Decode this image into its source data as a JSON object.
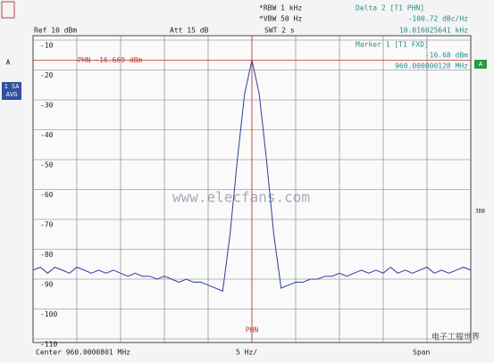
{
  "header": {
    "ref": "Ref  10 dBm",
    "att": "Att  15 dB",
    "rbw": "*RBW 1 kHz",
    "vbw": "*VBW 50 Hz",
    "swt": "SWT 2 s",
    "delta_title": "Delta 2 [T1 PHN]",
    "delta_value": "-100.72 dBc/Hz",
    "delta_freq": "10.016025641 kHz",
    "marker_title": "Marker 1 [T1 FXD]",
    "marker_value": "-16.68 dBm",
    "marker_freq": "960.000000128 MHz"
  },
  "side_labels": {
    "left_top": "A",
    "left_mode": "1 SA",
    "left_avg": "AVG",
    "right_a": "A",
    "right_3db": "3DB"
  },
  "footer": {
    "center": "Center  960.0000801 MHz",
    "per_div": "5 Hz/",
    "span": "Span"
  },
  "watermark": {
    "site": "www.elecfans.com",
    "logo": "电子工程世界"
  },
  "chart_data": {
    "type": "line",
    "color": "#2a3f9a",
    "values": [
      -87,
      -86,
      -88,
      -86,
      -87,
      -88,
      -86,
      -87,
      -88,
      -87,
      -88,
      -87,
      -88,
      -89,
      -88,
      -89,
      -89,
      -90,
      -89,
      -90,
      -91,
      -90,
      -91,
      -91,
      -92,
      -93,
      -94,
      -75,
      -50,
      -28,
      -16.7,
      -28,
      -50,
      -75,
      -93,
      -92,
      -91,
      -91,
      -90,
      -90,
      -89,
      -89,
      -88,
      -89,
      -88,
      -87,
      -88,
      -87,
      -88,
      -86,
      -88,
      -87,
      -88,
      -87,
      -86,
      -88,
      -87,
      -88,
      -87,
      -86,
      -87
    ],
    "ylim": [
      -110,
      -10
    ],
    "yticks": [
      -10,
      -20,
      -30,
      -40,
      -50,
      -60,
      -70,
      -80,
      -90,
      -100,
      -110
    ],
    "grid": true,
    "display_line": {
      "value": -16.669,
      "label": "PHN -16.669 dBm",
      "color": "#c0392b"
    },
    "center_marker": {
      "label": "PHN",
      "color": "#c0392b"
    }
  }
}
